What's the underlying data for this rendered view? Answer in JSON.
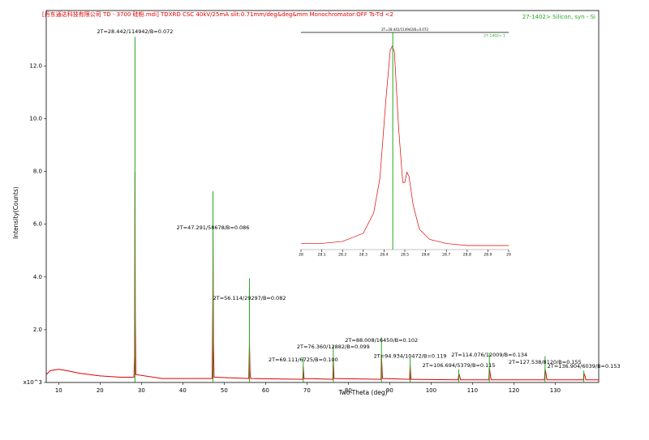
{
  "chart_data": [
    {
      "type": "line",
      "title": "[丹东通达科技有限公司 TD - 3700 硅粉.mdi] TDXRD CSC 40kV/25mA slit:0.71mm/deg&deg&mm Monochromator:OFF Ts-Td <2",
      "x_label": "Two-Theta (deg)",
      "y_label": "Intensity(Counts)",
      "xlim": [
        7,
        140.5
      ],
      "ylim": [
        0,
        14.1
      ],
      "xticks": [
        10,
        20,
        30,
        40,
        50,
        60,
        70,
        80,
        90,
        100,
        110,
        120,
        130
      ],
      "yticks": [
        {
          "value": 0,
          "label": "x10^3"
        },
        {
          "value": 2,
          "label": "2.0"
        },
        {
          "value": 4,
          "label": "4.0"
        },
        {
          "value": 6,
          "label": "6.0"
        },
        {
          "value": 8,
          "label": "8.0"
        },
        {
          "value": 10,
          "label": "10.0"
        },
        {
          "value": 12,
          "label": "12.0"
        }
      ],
      "legend": "top-right",
      "series": [
        {
          "style": "line",
          "color": "#e00000",
          "x": [
            7,
            8,
            10,
            12,
            15,
            20,
            25,
            28.2,
            28.35,
            28.44,
            28.52,
            28.65,
            35,
            47.1,
            47.25,
            47.3,
            47.4,
            47.55,
            55.95,
            56.1,
            56.25,
            56.4,
            69.0,
            69.11,
            69.3,
            76.25,
            76.36,
            76.55,
            87.9,
            88.0,
            88.25,
            94.8,
            94.93,
            95.15,
            106.55,
            106.69,
            106.9,
            107.1,
            113.95,
            114.08,
            114.3,
            114.5,
            127.4,
            127.54,
            127.8,
            128,
            136.8,
            136.9,
            137.2,
            137.4,
            140.5
          ],
          "values": [
            0.3,
            0.45,
            0.5,
            0.45,
            0.35,
            0.25,
            0.2,
            0.2,
            1.0,
            7.97,
            2.5,
            0.3,
            0.15,
            0.15,
            3.0,
            5.75,
            1.5,
            0.2,
            0.15,
            1.52,
            0.4,
            0.15,
            0.12,
            0.6,
            0.15,
            0.12,
            0.85,
            0.15,
            0.12,
            1.05,
            0.15,
            0.12,
            0.65,
            0.12,
            0.1,
            0.35,
            0.25,
            0.1,
            0.1,
            0.55,
            0.3,
            0.1,
            0.1,
            0.5,
            0.3,
            0.1,
            0.1,
            0.35,
            0.25,
            0.1,
            0.1
          ]
        },
        {
          "style": "stick",
          "name": "27-1402> Silicon, syn - Si",
          "color": "#22a822",
          "x": [
            28.442,
            47.291,
            56.114,
            69.111,
            76.36,
            88.008,
            94.934,
            106.694,
            114.076,
            127.538,
            136.904
          ],
          "values": [
            13.1,
            7.25,
            3.95,
            0.95,
            1.4,
            1.7,
            0.95,
            0.5,
            1.1,
            1.0,
            0.45
          ]
        }
      ],
      "annotations": [
        {
          "text": "2T=28.442/114942/B=0.072",
          "x": 28.442,
          "y": 13.3
        },
        {
          "text": "2T=47.291/58678/B=0.086",
          "x": 47.291,
          "y": 5.86
        },
        {
          "text": "2T=56.114/29297/B=0.082",
          "x": 56.114,
          "y": 3.2
        },
        {
          "text": "2T=69.111/6725/B=0.100",
          "x": 69.111,
          "y": 0.86
        },
        {
          "text": "2T=76.360/12882/B=0.099",
          "x": 76.36,
          "y": 1.35
        },
        {
          "text": "2T=88.008/16450/B=0.102",
          "x": 88.008,
          "y": 1.6
        },
        {
          "text": "2T=94.934/10472/B=0.119",
          "x": 94.934,
          "y": 1.0
        },
        {
          "text": "2T=106.694/5379/B=0.115",
          "x": 106.694,
          "y": 0.64
        },
        {
          "text": "2T=114.076/12009/B=0.134",
          "x": 114.076,
          "y": 1.04
        },
        {
          "text": "2T=127.538/8120/B=0.155",
          "x": 127.538,
          "y": 0.77
        },
        {
          "text": "2T=136.904/6039/B=0.153",
          "x": 136.904,
          "y": 0.61
        }
      ]
    },
    {
      "type": "line",
      "title": "2T=28.442/114942/B=0.072",
      "xlim": [
        28.0,
        29.0
      ],
      "ylim": [
        0,
        1.067
      ],
      "xticks": [
        28,
        28.1,
        28.2,
        28.3,
        28.4,
        28.5,
        28.6,
        28.7,
        28.8,
        28.9,
        29
      ],
      "legend": "top-right",
      "series": [
        {
          "style": "line",
          "color": "#e00000",
          "x": [
            28.0,
            28.1,
            28.2,
            28.3,
            28.35,
            28.38,
            28.41,
            28.43,
            28.44,
            28.45,
            28.47,
            28.49,
            28.5,
            28.51,
            28.52,
            28.54,
            28.57,
            28.62,
            28.7,
            28.8,
            29.0
          ],
          "values": [
            0.03,
            0.03,
            0.04,
            0.08,
            0.18,
            0.35,
            0.75,
            0.98,
            1.0,
            0.97,
            0.6,
            0.33,
            0.33,
            0.38,
            0.36,
            0.22,
            0.1,
            0.05,
            0.03,
            0.02,
            0.02
          ]
        },
        {
          "style": "stick",
          "name": "27-1402> 1",
          "color": "#22a822",
          "x": [
            28.442
          ],
          "values": [
            1.067
          ]
        }
      ]
    }
  ]
}
